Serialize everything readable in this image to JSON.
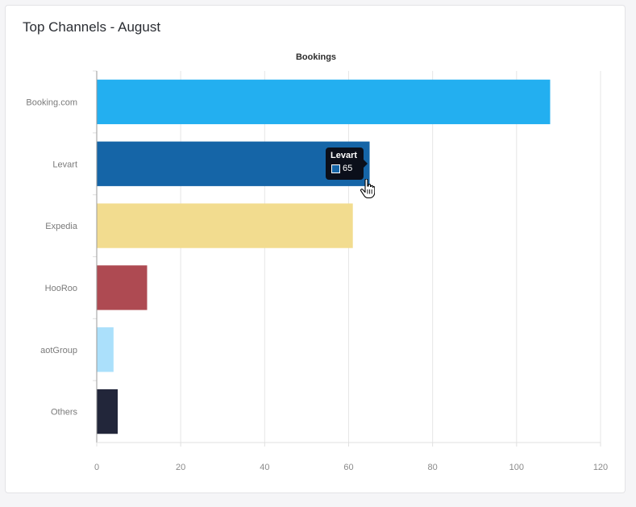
{
  "card": {
    "title": "Top Channels - August"
  },
  "chart_data": {
    "type": "bar",
    "orientation": "horizontal",
    "title": "Bookings",
    "xlabel": "",
    "ylabel": "",
    "categories": [
      "Booking.com",
      "Levart",
      "Expedia",
      "HooRoo",
      "aotGroup",
      "Others"
    ],
    "values": [
      108,
      65,
      61,
      12,
      4,
      5
    ],
    "colors": [
      "#23aff0",
      "#1565a7",
      "#f2dc8f",
      "#ae4a52",
      "#abe0fb",
      "#22263a"
    ],
    "xlim": [
      0,
      120
    ],
    "xticks": [
      0,
      20,
      40,
      60,
      80,
      100,
      120
    ],
    "grid": true,
    "legend": "none"
  },
  "tooltip": {
    "title": "Levart",
    "value": "65",
    "swatch_color": "#1565a7"
  },
  "cursor": {
    "icon": "hand-pointer-icon"
  }
}
